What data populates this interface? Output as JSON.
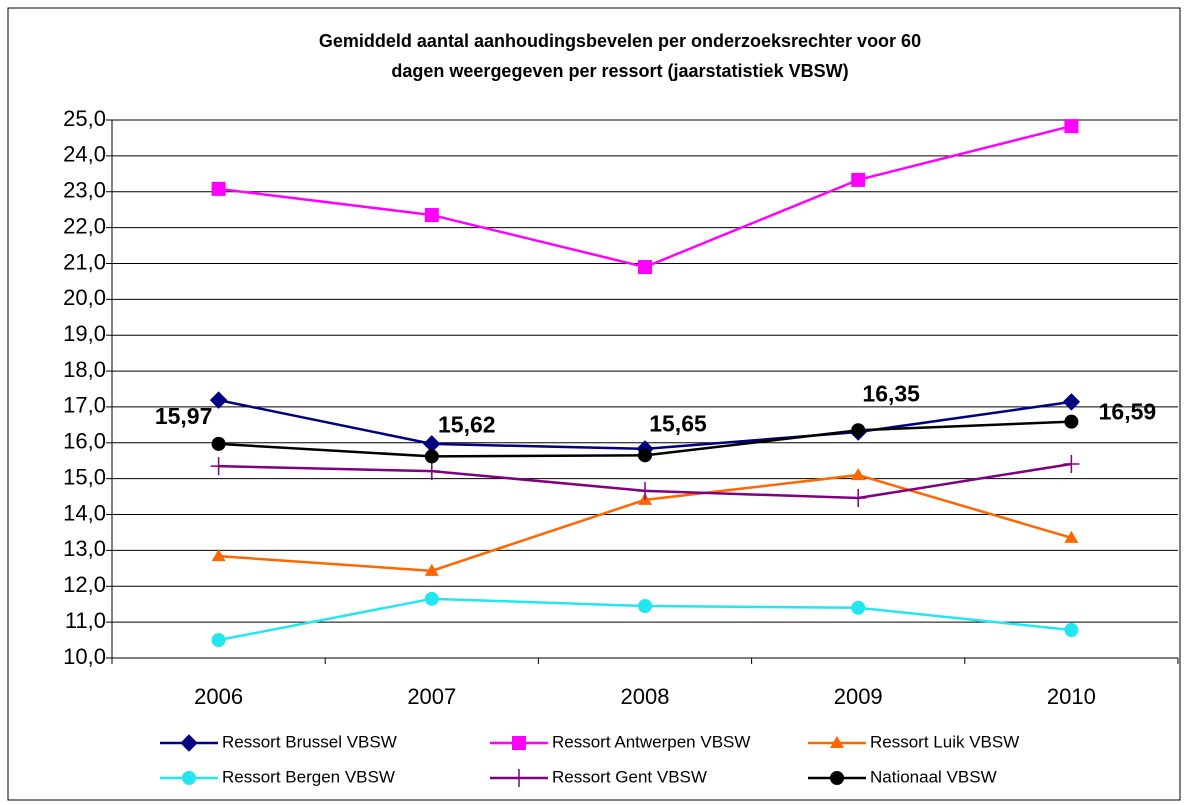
{
  "chart_data": {
    "type": "line",
    "title": [
      "Gemiddeld aantal aanhoudingsbevelen per onderzoeksrechter voor 60",
      "dagen weergegeven per ressort (jaarstatistiek VBSW)"
    ],
    "categories": [
      "2006",
      "2007",
      "2008",
      "2009",
      "2010"
    ],
    "ylim": [
      10,
      25
    ],
    "yticks": [
      {
        "value": 10,
        "label": "10,0"
      },
      {
        "value": 11,
        "label": "11,0"
      },
      {
        "value": 12,
        "label": "12,0"
      },
      {
        "value": 13,
        "label": "13,0"
      },
      {
        "value": 14,
        "label": "14,0"
      },
      {
        "value": 15,
        "label": "15,0"
      },
      {
        "value": 16,
        "label": "16,0"
      },
      {
        "value": 17,
        "label": "17,0"
      },
      {
        "value": 18,
        "label": "18,0"
      },
      {
        "value": 19,
        "label": "19,0"
      },
      {
        "value": 20,
        "label": "20,0"
      },
      {
        "value": 21,
        "label": "21,0"
      },
      {
        "value": 22,
        "label": "22,0"
      },
      {
        "value": 23,
        "label": "23,0"
      },
      {
        "value": 24,
        "label": "24,0"
      },
      {
        "value": 25,
        "label": "25,0"
      }
    ],
    "grid": true,
    "legend": "bottom",
    "series": [
      {
        "name": "Ressort Brussel VBSW",
        "color": "#000080",
        "marker": "diamond",
        "values": [
          17.19,
          15.97,
          15.83,
          16.3,
          17.14
        ]
      },
      {
        "name": "Ressort Antwerpen VBSW",
        "color": "#ff00ff",
        "marker": "square",
        "values": [
          23.08,
          22.35,
          20.9,
          23.33,
          24.83
        ]
      },
      {
        "name": "Ressort Luik VBSW",
        "color": "#ff6600",
        "marker": "triangle",
        "values": [
          12.84,
          12.43,
          14.41,
          15.1,
          13.35
        ]
      },
      {
        "name": "Ressort Bergen VBSW",
        "color": "#22e6f0",
        "marker": "circle",
        "values": [
          10.5,
          11.65,
          11.45,
          11.4,
          10.78
        ]
      },
      {
        "name": "Ressort Gent VBSW",
        "color": "#800080",
        "marker": "plus",
        "values": [
          15.35,
          15.21,
          14.66,
          14.46,
          15.41
        ]
      },
      {
        "name": "Nationaal VBSW",
        "color": "#000000",
        "marker": "circle",
        "values": [
          15.97,
          15.62,
          15.65,
          16.35,
          16.59
        ],
        "value_labels": [
          "15,97",
          "15,62",
          "15,65",
          "16,35",
          "16,59"
        ]
      }
    ]
  }
}
